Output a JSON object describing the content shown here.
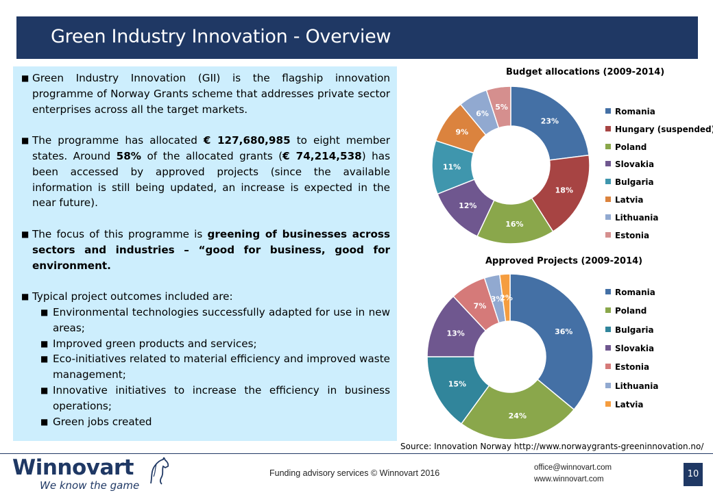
{
  "title": "Green Industry Innovation - Overview",
  "bullets": {
    "b1": "Green Industry Innovation (GII) is the flagship innovation programme of Norway Grants scheme that addresses private sector enterprises across all the target markets.",
    "b2": {
      "t1": "The programme has allocated ",
      "amount1": "€ 127,680,985",
      "t2": " to eight member states. Around ",
      "pct": "58%",
      "t3": " of the allocated grants (",
      "amount2": "€ 74,214,538",
      "t4": ") has been accessed by approved projects (since the available information is still being updated, an increase is expected in the near future)."
    },
    "b3": {
      "t1": "The focus of this programme is ",
      "bold": "greening of businesses across sectors and industries – “good for business, good for environment."
    },
    "b4": "Typical project outcomes included are:",
    "sub": [
      "Environmental technologies successfully adapted for use in new areas;",
      "Improved green products and services;",
      "Eco-initiatives related to material efficiency and improved waste management;",
      "Innovative initiatives to increase the efficiency in business operations;",
      "Green jobs created"
    ]
  },
  "chart_data": [
    {
      "type": "pie",
      "title": "Budget allocations (2009-2014)",
      "categories": [
        "Romania",
        "Hungary (suspended)",
        "Poland",
        "Slovakia",
        "Bulgaria",
        "Latvia",
        "Lithuania",
        "Estonia"
      ],
      "values": [
        23,
        18,
        16,
        12,
        11,
        9,
        6,
        5
      ],
      "labels": [
        "23%",
        "18%",
        "16%",
        "12%",
        "11%",
        "9%",
        "6%",
        "5%"
      ],
      "colors": [
        "#4470a5",
        "#a74443",
        "#8aa74b",
        "#6f578f",
        "#3f96ad",
        "#db833e",
        "#91a9d0",
        "#d58f8e"
      ],
      "legend_position": "right"
    },
    {
      "type": "pie",
      "title": "Approved Projects (2009-2014)",
      "categories": [
        "Romania",
        "Poland",
        "Bulgaria",
        "Slovakia",
        "Estonia",
        "Lithuania",
        "Latvia"
      ],
      "values": [
        36,
        24,
        15,
        13,
        7,
        3,
        2
      ],
      "labels": [
        "36%",
        "24%",
        "15%",
        "13%",
        "7%",
        "3%",
        "2%"
      ],
      "colors": [
        "#4470a5",
        "#8aa74b",
        "#31859b",
        "#6f578f",
        "#d57a79",
        "#91a9d0",
        "#f59d3f"
      ],
      "legend_position": "right"
    }
  ],
  "source": "Source: Innovation Norway http://www.norwaygrants-greeninnovation.no/",
  "footer": {
    "logo_name": "Winnovart",
    "logo_tagline": "We know the game",
    "center": "Funding advisory services © Winnovart 2016",
    "email": "office@winnovart.com",
    "website": "www.winnovart.com",
    "page": "10"
  },
  "colors": {
    "title_bar": "#1f3864",
    "textbox_bg": "#cdeefd"
  }
}
